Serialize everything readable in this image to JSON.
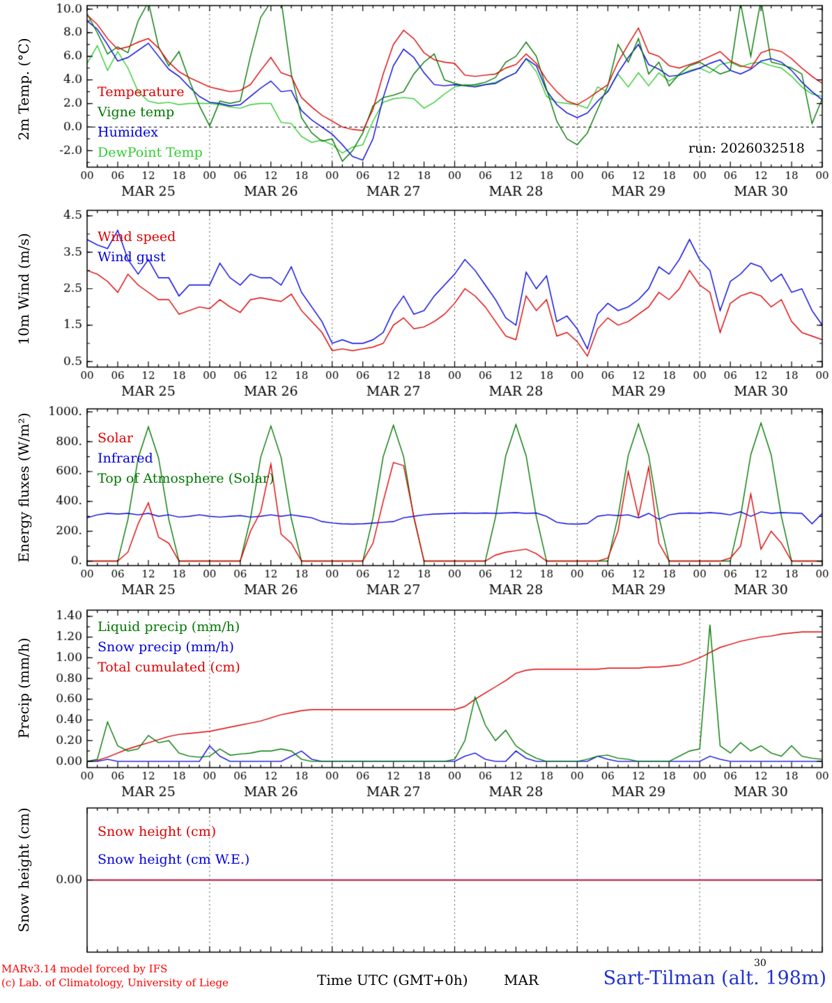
{
  "meta": {
    "run_label": "run: 2026032518",
    "footer_left_1": "MARv3.14 model forced by IFS",
    "footer_left_2": "(c) Lab. of Climatology, University of Liege",
    "footer_center": "Time UTC (GMT+0h)",
    "footer_mar": "MAR",
    "footer_sup": "30",
    "footer_right": "Sart-Tilman (alt. 198m)"
  },
  "colors": {
    "red": "#dd0000",
    "blue": "#0000dd",
    "dark_green": "#007700",
    "light_green": "#33cc33",
    "frame": "#000000",
    "day_line": "#555555",
    "title_blue": "#2233cc"
  },
  "time_axis": {
    "hours_total": 144,
    "step_hours": 2,
    "minor_tick_hours": 2,
    "major_tick_hours": 6,
    "x_tick_labels": [
      "00",
      "06",
      "12",
      "18",
      "00",
      "06",
      "12",
      "18",
      "00",
      "06",
      "12",
      "18",
      "00",
      "06",
      "12",
      "18",
      "00",
      "06",
      "12",
      "18",
      "00",
      "06",
      "12",
      "18",
      "00"
    ],
    "day_labels": [
      "MAR 25",
      "MAR 26",
      "MAR 27",
      "MAR 28",
      "MAR 29",
      "MAR 30"
    ]
  },
  "chart_data": [
    {
      "id": "temp2m",
      "type": "line",
      "ylabel": "2m Temp. (°C)",
      "ylim": [
        -3.4,
        10.3
      ],
      "ytick_values": [
        10,
        8,
        6,
        4,
        2,
        0,
        -2
      ],
      "ytick_labels": [
        "10.0",
        "8.0",
        "6.0",
        "4.0",
        "2.0",
        "0.0",
        "-2.0"
      ],
      "ytick_minor_step": 1,
      "zero_dash": true,
      "show_x_labels": true,
      "note": "run: 2026032518",
      "series": [
        {
          "name": "Temperature",
          "color": "#dd0000",
          "values": [
            9.5,
            8.7,
            7.5,
            6.6,
            6.8,
            7.2,
            7.5,
            6.7,
            5.5,
            4.7,
            4.2,
            3.8,
            3.4,
            3.2,
            3.0,
            3.1,
            3.6,
            4.8,
            5.9,
            4.6,
            4.3,
            2.5,
            1.7,
            1.0,
            0.5,
            0.0,
            -0.2,
            -0.3,
            1.5,
            4.5,
            7.0,
            8.2,
            7.5,
            6.3,
            5.7,
            5.5,
            5.4,
            4.4,
            4.3,
            4.4,
            4.5,
            5.0,
            5.3,
            6.2,
            5.4,
            4.0,
            3.0,
            2.2,
            1.9,
            2.4,
            3.0,
            3.6,
            5.5,
            7.0,
            8.4,
            6.3,
            6.0,
            5.2,
            5.0,
            5.3,
            5.6,
            6.0,
            6.4,
            5.6,
            5.2,
            5.0,
            6.3,
            6.6,
            6.4,
            5.8,
            5.0,
            4.3,
            3.7
          ]
        },
        {
          "name": "Vigne temp",
          "color": "#007700",
          "values": [
            9.6,
            8.0,
            6.2,
            6.8,
            6.3,
            9.0,
            10.6,
            6.8,
            5.2,
            6.4,
            4.0,
            1.8,
            0.1,
            2.2,
            2.0,
            2.2,
            6.0,
            9.3,
            10.6,
            10.8,
            4.5,
            0.8,
            -0.5,
            -1.2,
            -1.0,
            -2.9,
            -2.0,
            -0.5,
            1.8,
            2.5,
            2.7,
            3.0,
            4.5,
            5.5,
            6.2,
            4.0,
            3.7,
            3.5,
            3.6,
            3.8,
            4.2,
            5.5,
            6.0,
            7.2,
            6.0,
            3.2,
            0.5,
            -1.0,
            -1.5,
            -0.5,
            1.5,
            3.5,
            7.0,
            5.5,
            7.5,
            4.5,
            5.5,
            3.5,
            4.5,
            5.2,
            5.5,
            5.0,
            4.5,
            4.8,
            10.5,
            6.0,
            10.8,
            5.5,
            5.3,
            5.0,
            4.5,
            0.3,
            2.4
          ]
        },
        {
          "name": "Humidex",
          "color": "#0000dd",
          "values": [
            9.0,
            8.3,
            7.0,
            5.6,
            5.9,
            6.5,
            7.1,
            6.0,
            4.9,
            4.3,
            3.4,
            2.6,
            2.1,
            2.0,
            1.8,
            1.9,
            2.6,
            3.3,
            3.9,
            3.0,
            3.1,
            1.4,
            0.6,
            0.0,
            -0.6,
            -1.5,
            -2.5,
            -2.8,
            -1.0,
            2.5,
            5.2,
            6.6,
            5.9,
            4.6,
            3.6,
            3.5,
            3.6,
            3.5,
            3.4,
            3.6,
            3.7,
            4.2,
            4.6,
            5.8,
            5.2,
            3.1,
            1.9,
            1.2,
            0.8,
            1.2,
            2.2,
            3.0,
            4.6,
            5.9,
            7.0,
            5.3,
            4.9,
            4.3,
            4.4,
            4.7,
            5.0,
            5.4,
            5.7,
            4.8,
            4.5,
            4.9,
            5.6,
            5.8,
            5.5,
            4.8,
            3.8,
            3.0,
            2.3
          ]
        },
        {
          "name": "DewPoint Temp",
          "color": "#33cc33",
          "values": [
            5.4,
            6.9,
            4.8,
            6.4,
            5.0,
            3.0,
            2.2,
            2.0,
            2.1,
            1.9,
            2.0,
            2.0,
            2.0,
            1.9,
            1.7,
            1.6,
            1.9,
            2.0,
            2.0,
            0.4,
            0.3,
            -0.8,
            -1.3,
            -1.1,
            -1.5,
            -2.2,
            -1.7,
            -1.5,
            0.5,
            2.1,
            2.4,
            2.5,
            2.4,
            1.6,
            2.1,
            2.8,
            3.4,
            3.6,
            3.5,
            3.6,
            3.8,
            4.2,
            4.6,
            5.8,
            4.7,
            2.6,
            2.1,
            2.0,
            1.9,
            1.6,
            3.4,
            3.0,
            4.5,
            3.4,
            4.6,
            3.5,
            4.6,
            3.9,
            4.4,
            4.8,
            5.0,
            4.6,
            5.3,
            5.5,
            5.1,
            5.4,
            5.5,
            5.2,
            5.0,
            4.3,
            3.4,
            2.8,
            2.6
          ]
        }
      ]
    },
    {
      "id": "wind10m",
      "type": "line",
      "ylabel": "10m Wind (m/s)",
      "ylim": [
        0.35,
        4.65
      ],
      "ytick_values": [
        4.5,
        3.5,
        2.5,
        1.5,
        0.5
      ],
      "ytick_labels": [
        "4.5",
        "3.5",
        "2.5",
        "1.5",
        "0.5"
      ],
      "ytick_minor_step": 0.5,
      "zero_dash": false,
      "show_x_labels": true,
      "series": [
        {
          "name": "Wind speed",
          "color": "#dd0000",
          "values": [
            3.0,
            2.9,
            2.7,
            2.4,
            2.9,
            2.6,
            2.4,
            2.2,
            2.2,
            1.8,
            1.9,
            2.0,
            1.95,
            2.2,
            2.0,
            1.85,
            2.2,
            2.25,
            2.2,
            2.15,
            2.35,
            1.9,
            1.6,
            1.3,
            0.8,
            0.85,
            0.8,
            0.85,
            0.9,
            1.0,
            1.5,
            1.7,
            1.4,
            1.45,
            1.6,
            1.8,
            2.1,
            2.5,
            2.3,
            2.0,
            1.6,
            1.2,
            1.1,
            2.3,
            1.9,
            2.2,
            1.2,
            1.3,
            1.05,
            0.65,
            1.4,
            1.7,
            1.5,
            1.6,
            1.8,
            2.0,
            2.4,
            2.2,
            2.5,
            3.0,
            2.6,
            2.4,
            1.3,
            2.1,
            2.3,
            2.4,
            2.3,
            2.0,
            2.2,
            1.6,
            1.3,
            1.2,
            1.1
          ]
        },
        {
          "name": "Wind gust",
          "color": "#0000dd",
          "values": [
            3.85,
            3.7,
            3.6,
            4.1,
            3.3,
            2.9,
            3.3,
            2.8,
            2.8,
            2.3,
            2.6,
            2.6,
            2.6,
            3.2,
            2.8,
            2.6,
            2.9,
            2.8,
            2.8,
            2.6,
            3.1,
            2.4,
            2.0,
            1.6,
            1.0,
            1.1,
            1.0,
            1.0,
            1.1,
            1.3,
            1.9,
            2.3,
            1.8,
            1.9,
            2.3,
            2.6,
            2.9,
            3.3,
            3.0,
            2.6,
            2.2,
            1.7,
            1.5,
            2.95,
            2.5,
            2.85,
            1.6,
            1.75,
            1.4,
            0.85,
            1.8,
            2.1,
            1.9,
            2.0,
            2.2,
            2.5,
            3.1,
            2.9,
            3.3,
            3.85,
            3.3,
            3.0,
            1.9,
            2.7,
            2.9,
            3.2,
            3.1,
            2.7,
            2.9,
            2.4,
            2.5,
            1.9,
            1.5
          ]
        }
      ]
    },
    {
      "id": "energy",
      "type": "line",
      "ylabel": "Energy fluxes (W/m²)",
      "ylim": [
        -30,
        1020
      ],
      "ytick_values": [
        1000,
        800,
        600,
        400,
        200,
        0
      ],
      "ytick_labels": [
        "1000.",
        "800.",
        "600.",
        "400.",
        "200.",
        "0."
      ],
      "ytick_minor_step": 100,
      "zero_dash": false,
      "show_x_labels": true,
      "series": [
        {
          "name": "Solar",
          "color": "#dd0000",
          "values": [
            0,
            0,
            0,
            0,
            60,
            250,
            390,
            160,
            120,
            0,
            0,
            0,
            0,
            0,
            0,
            0,
            200,
            330,
            650,
            180,
            120,
            0,
            0,
            0,
            0,
            0,
            0,
            0,
            120,
            400,
            660,
            640,
            300,
            0,
            0,
            0,
            0,
            0,
            0,
            0,
            40,
            60,
            70,
            80,
            50,
            0,
            0,
            0,
            0,
            0,
            0,
            20,
            200,
            600,
            300,
            630,
            120,
            0,
            0,
            0,
            0,
            0,
            0,
            20,
            100,
            450,
            80,
            200,
            120,
            0,
            0,
            0,
            0
          ]
        },
        {
          "name": "Infrared",
          "color": "#0000dd",
          "values": [
            290,
            310,
            320,
            315,
            320,
            310,
            320,
            300,
            310,
            295,
            300,
            310,
            300,
            295,
            300,
            305,
            295,
            300,
            310,
            300,
            310,
            300,
            290,
            265,
            255,
            250,
            248,
            250,
            255,
            260,
            265,
            290,
            300,
            310,
            315,
            318,
            320,
            322,
            320,
            322,
            320,
            322,
            325,
            320,
            322,
            300,
            260,
            250,
            248,
            252,
            300,
            310,
            305,
            310,
            290,
            320,
            280,
            310,
            320,
            322,
            320,
            325,
            320,
            310,
            330,
            300,
            330,
            320,
            325,
            322,
            320,
            250,
            320
          ]
        },
        {
          "name": "Top of Atmosphere (Solar)",
          "color": "#007700",
          "values": [
            0,
            0,
            0,
            0,
            280,
            690,
            900,
            690,
            280,
            0,
            0,
            0,
            0,
            0,
            0,
            0,
            285,
            695,
            905,
            695,
            285,
            0,
            0,
            0,
            0,
            0,
            0,
            0,
            290,
            700,
            910,
            700,
            290,
            0,
            0,
            0,
            0,
            0,
            0,
            0,
            295,
            705,
            915,
            705,
            295,
            0,
            0,
            0,
            0,
            0,
            0,
            0,
            298,
            708,
            918,
            708,
            298,
            0,
            0,
            0,
            0,
            0,
            0,
            0,
            300,
            712,
            925,
            712,
            300,
            0,
            0,
            0,
            0
          ]
        }
      ]
    },
    {
      "id": "precip",
      "type": "line",
      "ylabel": "Precip (mm/h)",
      "ylim": [
        -0.06,
        1.46
      ],
      "ytick_values": [
        1.4,
        1.2,
        1.0,
        0.8,
        0.6,
        0.4,
        0.2,
        0.0
      ],
      "ytick_labels": [
        "1.40",
        "1.20",
        "1.00",
        "0.80",
        "0.60",
        "0.40",
        "0.20",
        "0.00"
      ],
      "ytick_minor_step": 0.1,
      "zero_dash": false,
      "show_x_labels": true,
      "series": [
        {
          "name": "Liquid precip (mm/h)",
          "color": "#007700",
          "values": [
            0,
            0.02,
            0.38,
            0.15,
            0.1,
            0.12,
            0.25,
            0.18,
            0.2,
            0.08,
            0.05,
            0.04,
            0.05,
            0.12,
            0.06,
            0.07,
            0.08,
            0.1,
            0.1,
            0.12,
            0.1,
            0.02,
            0,
            0,
            0,
            0,
            0,
            0,
            0,
            0,
            0,
            0,
            0,
            0,
            0,
            0,
            0.02,
            0.2,
            0.62,
            0.35,
            0.2,
            0.3,
            0.15,
            0.08,
            0.03,
            0,
            0,
            0,
            0,
            0.02,
            0.05,
            0.06,
            0.03,
            0.02,
            0,
            0,
            0,
            0,
            0.05,
            0.1,
            0.12,
            1.32,
            0.15,
            0.08,
            0.18,
            0.1,
            0.15,
            0.08,
            0.05,
            0.15,
            0.05,
            0.03,
            0.02
          ]
        },
        {
          "name": "Snow precip (mm/h)",
          "color": "#0000dd",
          "values": [
            0,
            0,
            0.02,
            0,
            0,
            0,
            0,
            0,
            0,
            0,
            0,
            0,
            0.15,
            0.05,
            0,
            0,
            0,
            0,
            0,
            0,
            0.05,
            0.1,
            0.02,
            0,
            0,
            0,
            0,
            0,
            0,
            0,
            0,
            0,
            0,
            0,
            0,
            0,
            0,
            0.05,
            0.08,
            0.02,
            0,
            0,
            0.1,
            0.03,
            0,
            0,
            0,
            0,
            0,
            0,
            0.05,
            0.02,
            0,
            0,
            0,
            0,
            0,
            0,
            0,
            0,
            0,
            0.05,
            0.02,
            0,
            0,
            0,
            0,
            0,
            0,
            0,
            0,
            0,
            0
          ]
        },
        {
          "name": "Total cumulated (cm)",
          "color": "#dd0000",
          "values": [
            0,
            0.01,
            0.04,
            0.08,
            0.12,
            0.15,
            0.18,
            0.21,
            0.24,
            0.26,
            0.27,
            0.28,
            0.29,
            0.31,
            0.33,
            0.35,
            0.37,
            0.39,
            0.42,
            0.45,
            0.47,
            0.49,
            0.5,
            0.5,
            0.5,
            0.5,
            0.5,
            0.5,
            0.5,
            0.5,
            0.5,
            0.5,
            0.5,
            0.5,
            0.5,
            0.5,
            0.5,
            0.53,
            0.6,
            0.66,
            0.72,
            0.78,
            0.85,
            0.88,
            0.89,
            0.89,
            0.89,
            0.89,
            0.89,
            0.89,
            0.89,
            0.9,
            0.9,
            0.9,
            0.9,
            0.91,
            0.91,
            0.92,
            0.93,
            0.96,
            1.0,
            1.05,
            1.1,
            1.13,
            1.16,
            1.18,
            1.2,
            1.21,
            1.23,
            1.24,
            1.25,
            1.25,
            1.25
          ]
        }
      ]
    },
    {
      "id": "snow",
      "type": "line",
      "ylabel": "Snow height (cm)",
      "ylim": [
        -1,
        1
      ],
      "ytick_values": [
        0
      ],
      "ytick_labels": [
        "0.00"
      ],
      "ytick_minor_step": null,
      "zero_dash": false,
      "show_x_labels": false,
      "series": [
        {
          "name": "Snow height (cm)",
          "color": "#dd0000",
          "const": 0
        },
        {
          "name": "Snow height (cm W.E.)",
          "color": "#0000dd",
          "const": 0
        }
      ]
    }
  ]
}
